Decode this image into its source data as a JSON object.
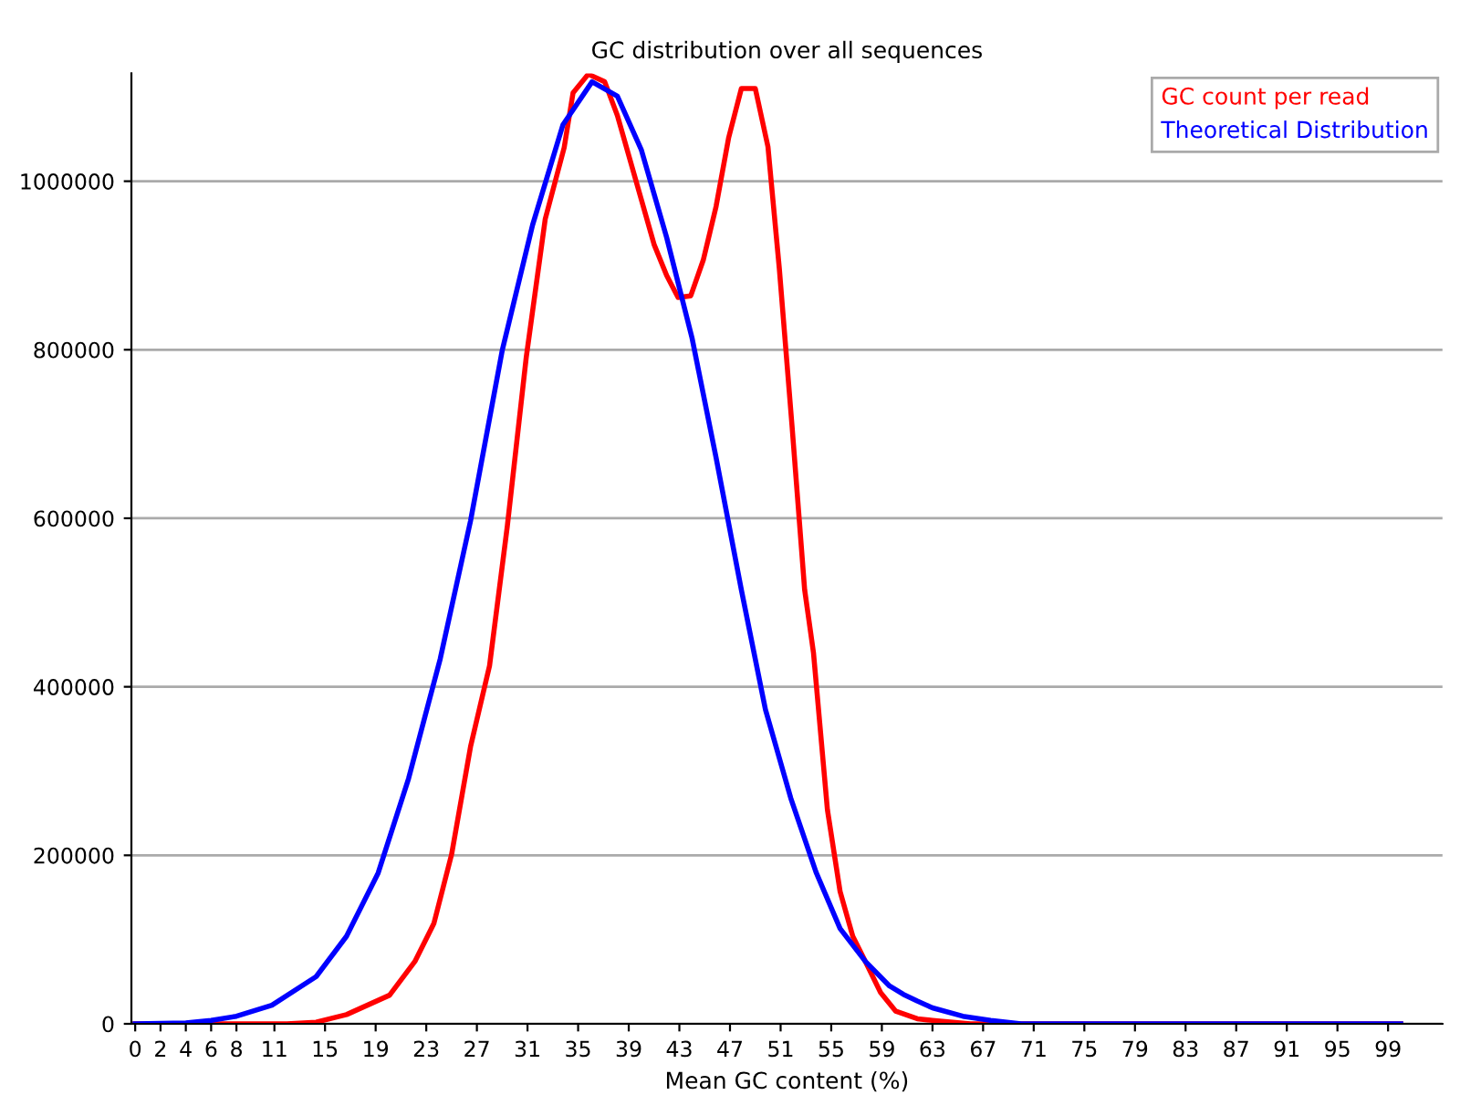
{
  "chart_data": {
    "type": "line",
    "title": "GC distribution over all sequences",
    "xlabel": "Mean GC content (%)",
    "xlim": [
      -0.3,
      103.3
    ],
    "xticks": [
      0,
      2,
      4,
      6,
      8,
      11,
      15,
      19,
      23,
      27,
      31,
      35,
      39,
      43,
      47,
      51,
      55,
      59,
      63,
      67,
      71,
      75,
      79,
      83,
      87,
      91,
      95,
      99
    ],
    "ylim": [
      0,
      1128000
    ],
    "yticks": [
      0,
      200000,
      400000,
      600000,
      800000,
      1000000
    ],
    "grid": "y",
    "legend": "top right",
    "marker": "none",
    "line_style": "solid",
    "series": [
      {
        "name": "GC count per read",
        "color": "#ff0000",
        "x": [
          0,
          12,
          14.3,
          16.7,
          20.1,
          22.1,
          23.6,
          25.0,
          26.5,
          28.0,
          29.4,
          30.9,
          32.4,
          33.9,
          34.6,
          35.8,
          37.1,
          38.1,
          40,
          41,
          42,
          42.9,
          43.9,
          44.9,
          45.9,
          46.9,
          47.9,
          49.0,
          50.0,
          50.9,
          51.9,
          52.9,
          53.6,
          54.7,
          55.7,
          56.7,
          57.7,
          58.9,
          60.1,
          61.8,
          63,
          66,
          100
        ],
        "values": [
          0,
          0,
          2000,
          11000,
          34000,
          74000,
          119000,
          201000,
          329000,
          425000,
          590000,
          791000,
          955000,
          1040000,
          1105000,
          1127000,
          1118000,
          1078000,
          978000,
          925000,
          888000,
          862000,
          864000,
          907000,
          970000,
          1052000,
          1110000,
          1110000,
          1041000,
          896000,
          710000,
          515000,
          440000,
          254000,
          157000,
          104000,
          74000,
          37000,
          15000,
          6000,
          4000,
          0,
          0
        ]
      },
      {
        "name": "Theoretical Distribution",
        "color": "#0000ff",
        "x": [
          0,
          4,
          6,
          8,
          10.8,
          14.3,
          16.7,
          19.2,
          21.6,
          24.1,
          26.5,
          29,
          31.4,
          33.8,
          36.1,
          38.1,
          40.0,
          42.0,
          44.0,
          45.9,
          47.9,
          49.8,
          51.8,
          53.8,
          55.7,
          57.7,
          59.6,
          60.7,
          61.8,
          63,
          65.4,
          67.6,
          70,
          100
        ],
        "values": [
          0,
          1000,
          4000,
          9000,
          22000,
          56000,
          104000,
          179000,
          291000,
          433000,
          597000,
          799000,
          948000,
          1067000,
          1118000,
          1101000,
          1037000,
          933000,
          814000,
          672000,
          515000,
          373000,
          268000,
          180000,
          113000,
          74000,
          45000,
          35000,
          27000,
          19000,
          9000,
          4000,
          0,
          0
        ]
      }
    ]
  }
}
